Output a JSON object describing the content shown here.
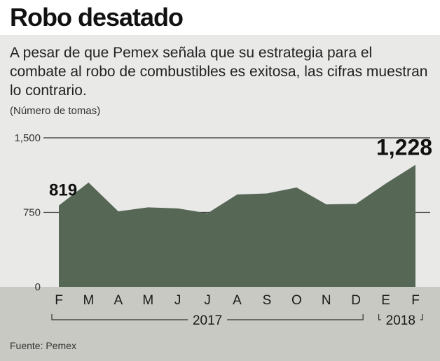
{
  "title": "Robo desatado",
  "subtitle": "A pesar de que Pemex señala que su estrategia para el combate al robo de combustibles es exitosa, las cifras muestran lo contrario.",
  "units": "(Número de tomas)",
  "source": "Fuente: Pemex",
  "colors": {
    "area": "#566756",
    "grid": "#333333",
    "bottom_band": "#c8c9c2"
  },
  "chart_data": {
    "type": "area",
    "categories": [
      "F",
      "M",
      "A",
      "M",
      "J",
      "J",
      "A",
      "S",
      "O",
      "N",
      "D",
      "E",
      "F"
    ],
    "values": [
      819,
      1050,
      760,
      800,
      790,
      740,
      930,
      940,
      1000,
      830,
      835,
      1040,
      1228
    ],
    "ylim": [
      0,
      1500
    ],
    "yticks": [
      0,
      750,
      1500
    ],
    "ytick_labels": [
      "0",
      "750",
      "1,500"
    ],
    "annotations": [
      {
        "index": 0,
        "label": "819"
      },
      {
        "index": 12,
        "label": "1,228"
      }
    ],
    "groups": [
      {
        "label": "2017",
        "from": 0,
        "to": 10
      },
      {
        "label": "2018",
        "from": 11,
        "to": 12
      }
    ],
    "grid": true
  }
}
